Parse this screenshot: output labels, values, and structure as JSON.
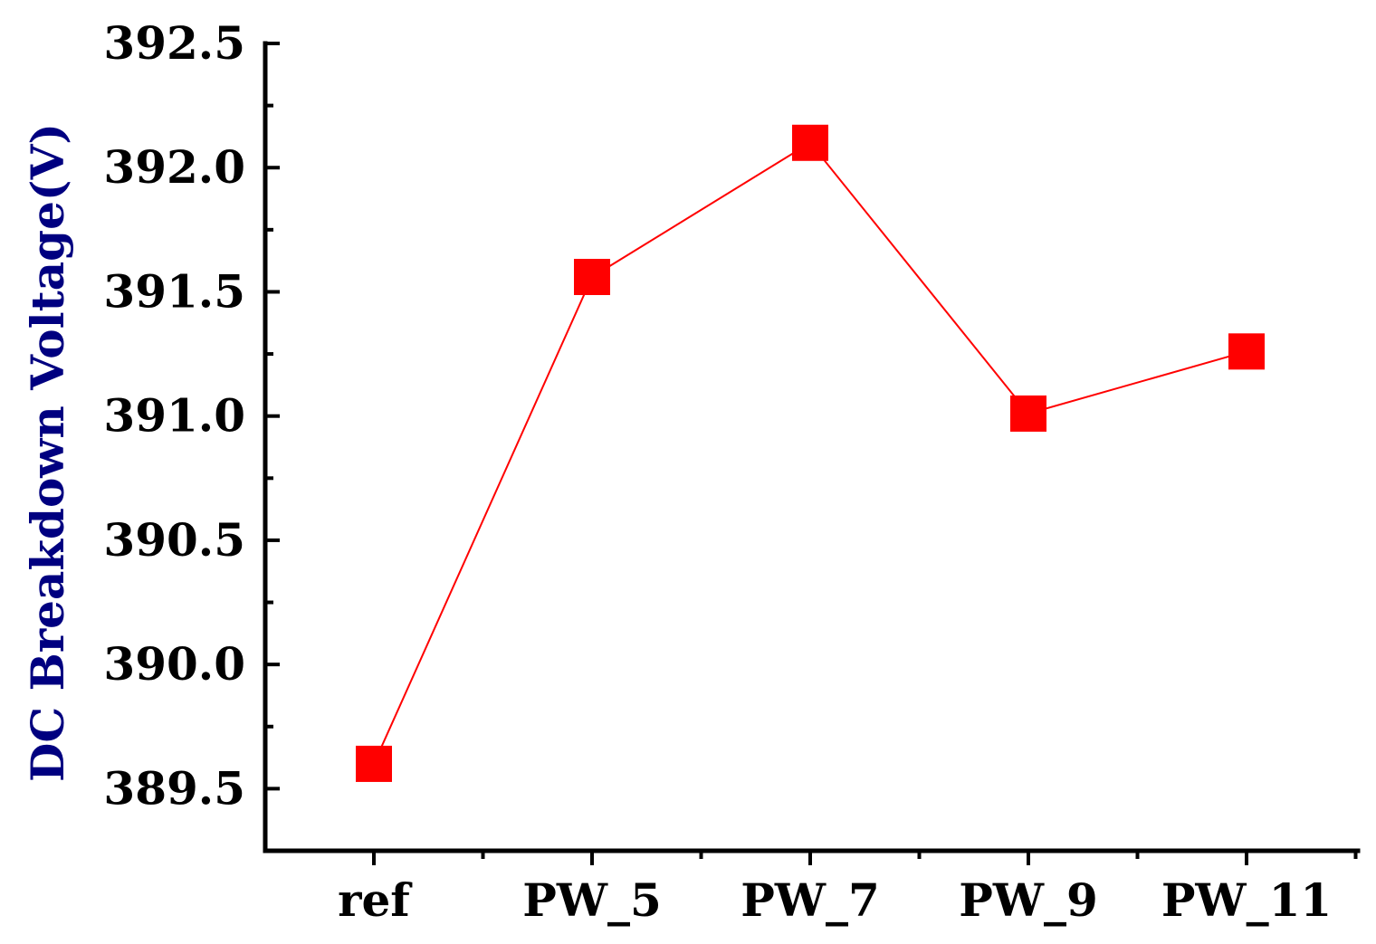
{
  "chart_data": {
    "type": "line",
    "title": "",
    "xlabel": "",
    "ylabel": "DC Breakdown Voltage(V)",
    "categories": [
      "ref",
      "PW_5",
      "PW_7",
      "PW_9",
      "PW_11"
    ],
    "series": [
      {
        "values": [
          389.6,
          391.56,
          392.1,
          391.01,
          391.26
        ]
      }
    ],
    "ylim": [
      389.25,
      392.5
    ],
    "yticks": [
      389.5,
      390.0,
      390.5,
      391.0,
      391.5,
      392.0,
      392.5
    ],
    "ytick_labels": [
      "389.5",
      "390.0",
      "390.5",
      "391.0",
      "391.5",
      "392.0",
      "392.5"
    ],
    "grid": false,
    "legend": "none",
    "colors": {
      "series": "#ff0000",
      "axis": "#000000",
      "ylabel": "#000080"
    }
  }
}
